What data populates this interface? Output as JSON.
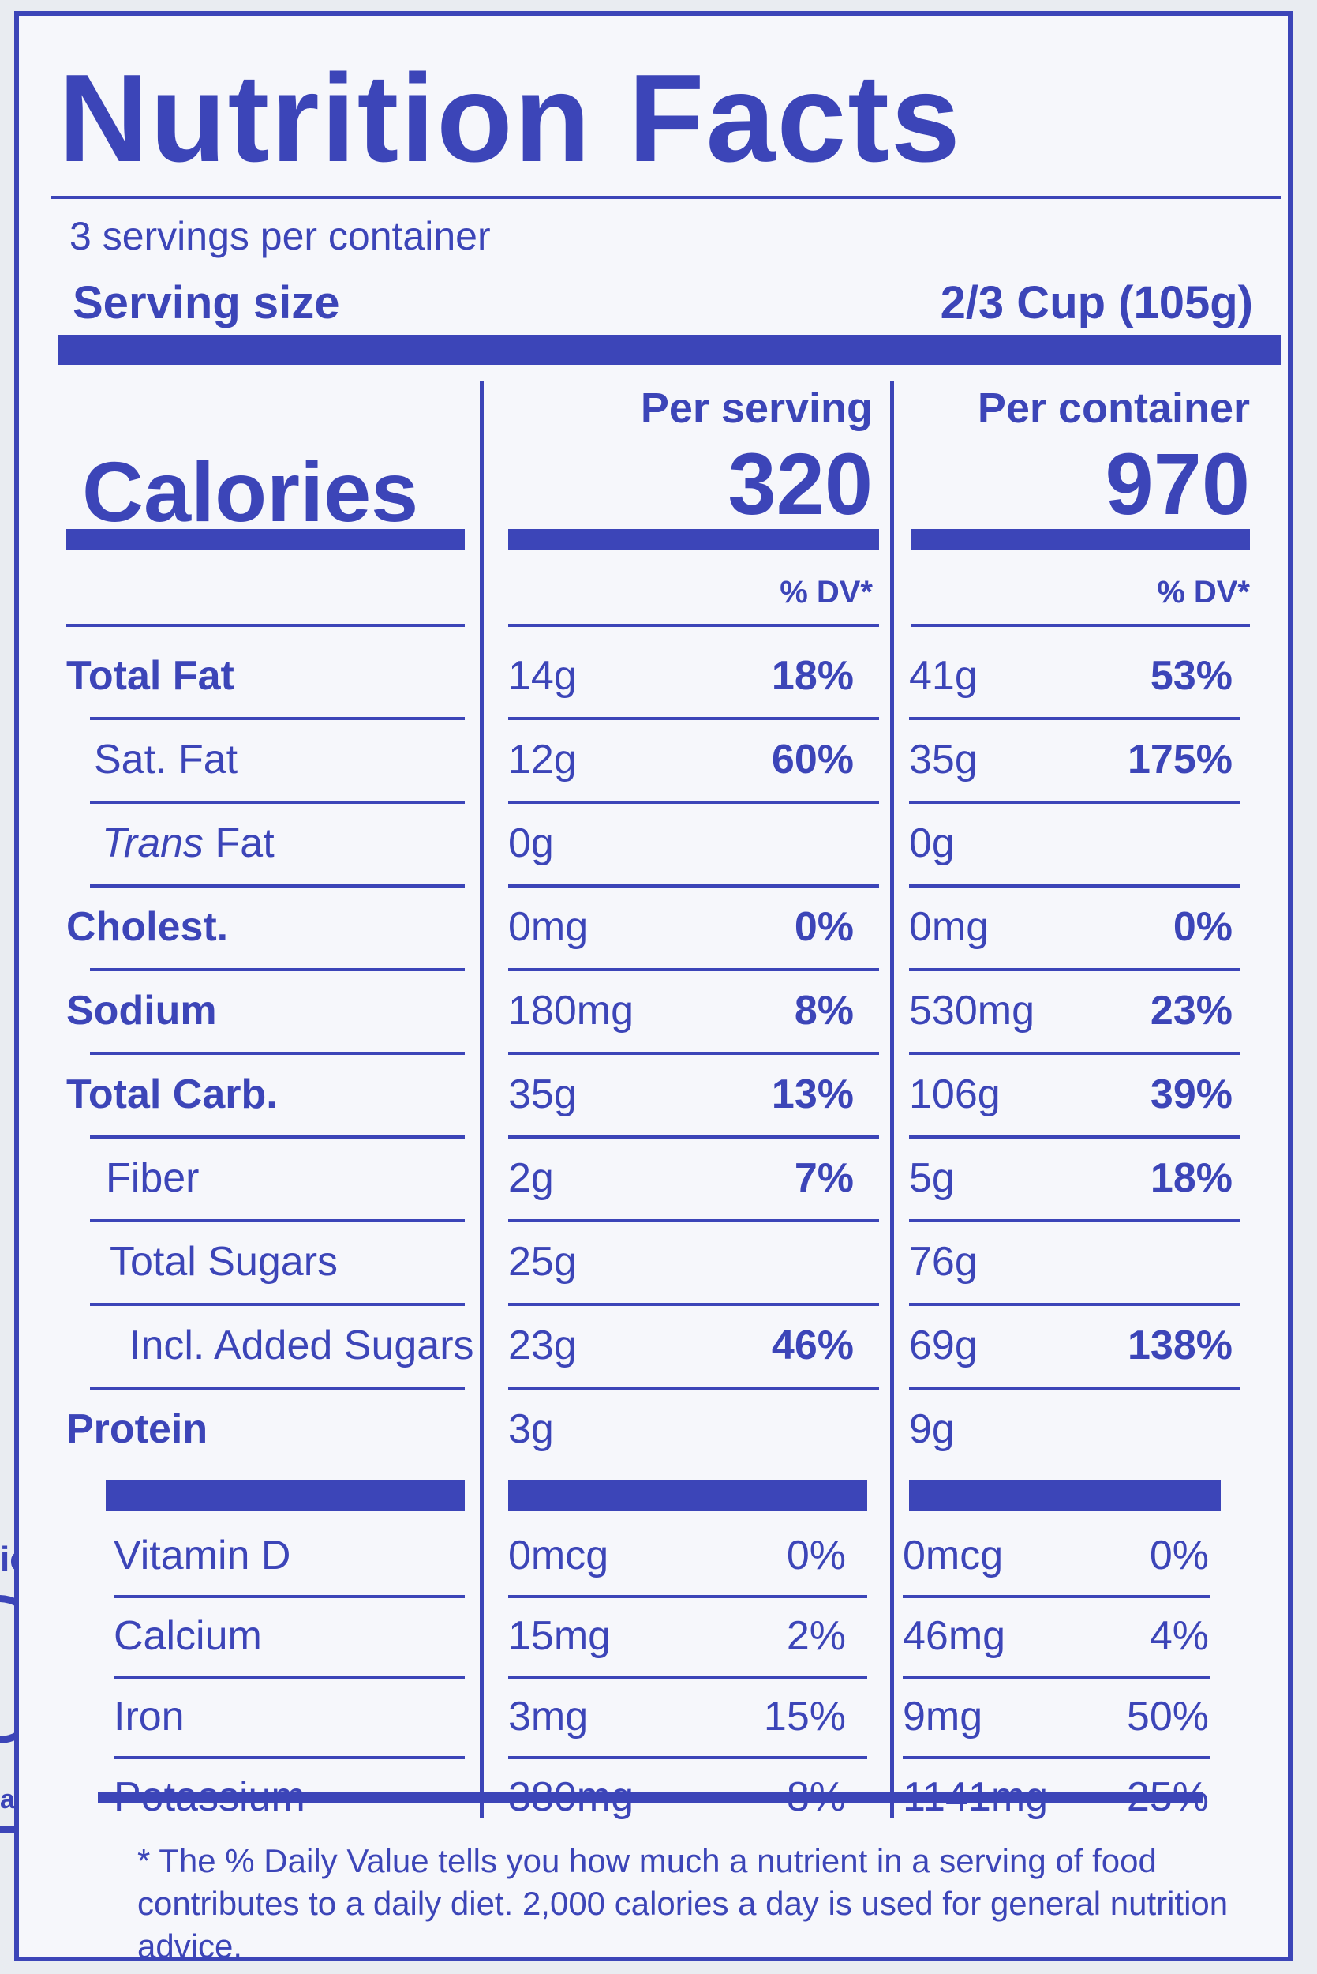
{
  "title": "Nutrition Facts",
  "servings_per_container": "3 servings per container",
  "serving_size_label": "Serving size",
  "serving_size_value": "2/3 Cup (105g)",
  "calories_label": "Calories",
  "per_serving_label": "Per serving",
  "per_container_label": "Per container",
  "calories_per_serving": "320",
  "calories_per_container": "970",
  "dv_label": "% DV*",
  "nutrients": [
    {
      "name": "Total Fat",
      "serv_amt": "14g",
      "serv_dv": "18%",
      "cont_amt": "41g",
      "cont_dv": "53%"
    },
    {
      "name": "Sat. Fat",
      "serv_amt": "12g",
      "serv_dv": "60%",
      "cont_amt": "35g",
      "cont_dv": "175%"
    },
    {
      "name_italic": "Trans",
      "name_rest": " Fat",
      "serv_amt": "0g",
      "cont_amt": "0g"
    },
    {
      "name": "Cholest.",
      "serv_amt": "0mg",
      "serv_dv": "0%",
      "cont_amt": "0mg",
      "cont_dv": "0%"
    },
    {
      "name": "Sodium",
      "serv_amt": "180mg",
      "serv_dv": "8%",
      "cont_amt": "530mg",
      "cont_dv": "23%"
    },
    {
      "name": "Total Carb.",
      "serv_amt": "35g",
      "serv_dv": "13%",
      "cont_amt": "106g",
      "cont_dv": "39%"
    },
    {
      "name": "Fiber",
      "serv_amt": "2g",
      "serv_dv": "7%",
      "cont_amt": "5g",
      "cont_dv": "18%"
    },
    {
      "name": "Total Sugars",
      "serv_amt": "25g",
      "cont_amt": "76g"
    },
    {
      "name": "Incl. Added Sugars",
      "serv_amt": "23g",
      "serv_dv": "46%",
      "cont_amt": "69g",
      "cont_dv": "138%"
    },
    {
      "name": "Protein",
      "serv_amt": "3g",
      "cont_amt": "9g"
    }
  ],
  "vitamins": [
    {
      "name": "Vitamin D",
      "serv_amt": "0mcg",
      "serv_dv": "0%",
      "cont_amt": "0mcg",
      "cont_dv": "0%"
    },
    {
      "name": "Calcium",
      "serv_amt": "15mg",
      "serv_dv": "2%",
      "cont_amt": "46mg",
      "cont_dv": "4%"
    },
    {
      "name": "Iron",
      "serv_amt": "3mg",
      "serv_dv": "15%",
      "cont_amt": "9mg",
      "cont_dv": "50%"
    },
    {
      "name": "Potassium",
      "serv_amt": "380mg",
      "serv_dv": "8%",
      "cont_amt": "1141mg",
      "cont_dv": "25%"
    }
  ],
  "footnote": "* The % Daily Value tells you how much a nutrient in a serving of food contributes to a daily diet. 2,000 calories a day is used for general nutrition advice.",
  "side_text_top": "ied",
  "side_text_bottom": "ation",
  "colors": {
    "ink": "#3c45b8",
    "paper": "#f6f7fb"
  }
}
